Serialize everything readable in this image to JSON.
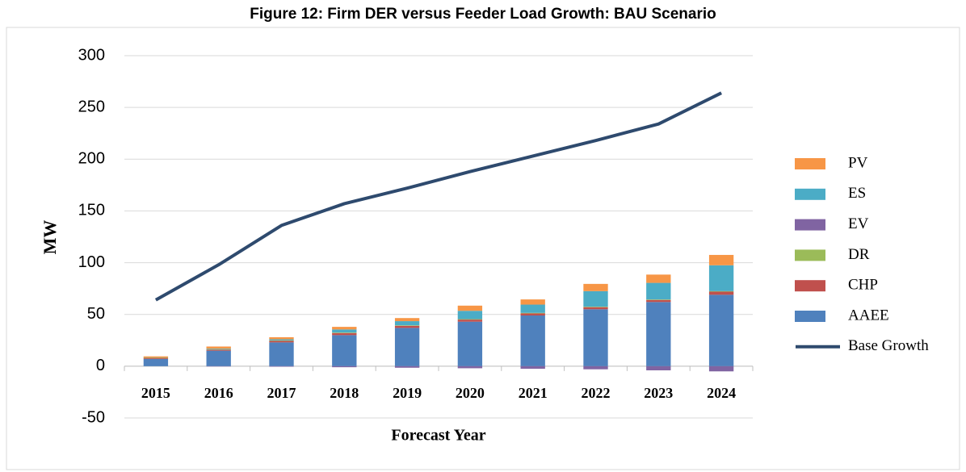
{
  "chart_data": {
    "type": "bar",
    "stacked": true,
    "title": "Figure 12: Firm DER versus Feeder Load Growth: BAU Scenario",
    "y_label": "MW",
    "x_label": "Forecast Year",
    "categories": [
      "2015",
      "2016",
      "2017",
      "2018",
      "2019",
      "2020",
      "2021",
      "2022",
      "2023",
      "2024"
    ],
    "ylim": [
      -50,
      300
    ],
    "yticks": [
      -50,
      0,
      50,
      100,
      150,
      200,
      250,
      300
    ],
    "grid": true,
    "legend": "right",
    "series": [
      {
        "name": "AAEE",
        "color": "#4f81bd",
        "values": [
          7,
          15,
          23,
          30,
          37,
          43,
          49,
          55,
          62,
          69
        ]
      },
      {
        "name": "CHP",
        "color": "#c0504d",
        "values": [
          1,
          1,
          1.5,
          2,
          2,
          2,
          2,
          2,
          2,
          3
        ]
      },
      {
        "name": "DR",
        "color": "#9bbb59",
        "values": [
          0.5,
          0.5,
          0.5,
          0.5,
          0.5,
          0.5,
          0.5,
          0.5,
          0.5,
          0.5
        ]
      },
      {
        "name": "EV",
        "color": "#8064a2",
        "values": [
          0,
          -0.3,
          -0.5,
          -1,
          -1.5,
          -2,
          -2.5,
          -3,
          -4,
          -5
        ]
      },
      {
        "name": "ES",
        "color": "#4bacc6",
        "values": [
          0,
          0.5,
          1,
          3,
          4,
          8,
          8,
          15,
          16,
          25
        ]
      },
      {
        "name": "PV",
        "color": "#f79646",
        "values": [
          1,
          2,
          2,
          2.5,
          3,
          5,
          5,
          7,
          8,
          10
        ]
      },
      {
        "name": "Base Growth",
        "type": "line",
        "color": "#2e4a6e",
        "values": [
          64,
          98,
          136,
          157,
          172,
          188,
          203,
          218,
          234,
          264
        ]
      }
    ]
  }
}
